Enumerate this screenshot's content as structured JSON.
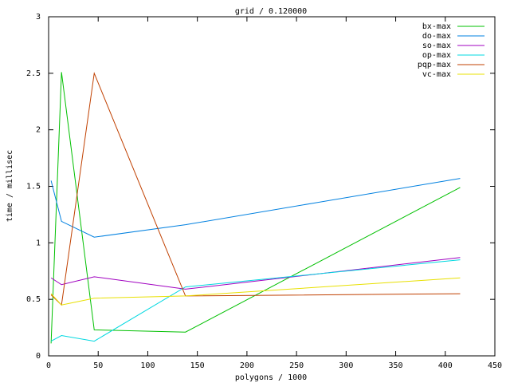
{
  "chart_data": {
    "type": "line",
    "title": "grid / 0.120000",
    "x_label": "polygons / 1000",
    "y_label": "time / millisec",
    "x": [
      2.5,
      13,
      46,
      138,
      415
    ],
    "series": [
      {
        "name": "bx-max",
        "color": "#00c000",
        "values": [
          0.11,
          2.51,
          0.23,
          0.21,
          1.49
        ]
      },
      {
        "name": "do-max",
        "color": "#0080e0",
        "values": [
          1.55,
          1.19,
          1.05,
          1.16,
          1.57
        ]
      },
      {
        "name": "so-max",
        "color": "#a000c0",
        "values": [
          0.69,
          0.63,
          0.7,
          0.59,
          0.87
        ]
      },
      {
        "name": "op-max",
        "color": "#00d8e0",
        "values": [
          0.13,
          0.18,
          0.13,
          0.61,
          0.85
        ]
      },
      {
        "name": "pqp-max",
        "color": "#c04000",
        "values": [
          0.54,
          0.45,
          2.5,
          0.53,
          0.55
        ]
      },
      {
        "name": "vc-max",
        "color": "#e8e000",
        "values": [
          0.55,
          0.45,
          0.51,
          0.53,
          0.69
        ]
      }
    ],
    "xlim": [
      0,
      450
    ],
    "xticks": [
      0,
      50,
      100,
      150,
      200,
      250,
      300,
      350,
      400,
      450
    ],
    "ylim": [
      0,
      3
    ],
    "yticks": [
      0,
      0.5,
      1,
      1.5,
      2,
      2.5,
      3
    ],
    "grid": false,
    "legend": "top-right"
  }
}
